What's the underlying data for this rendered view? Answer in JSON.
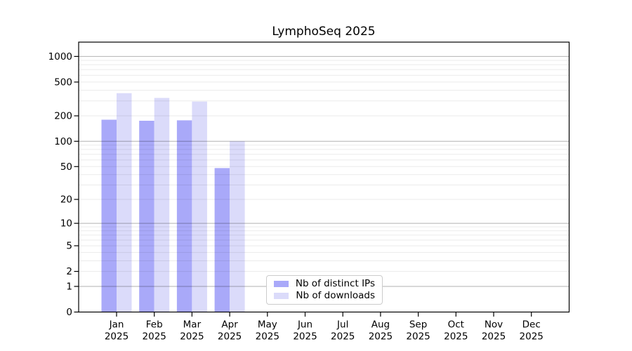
{
  "figure": {
    "background": "#ffffff"
  },
  "chart_data": {
    "type": "bar",
    "title": "LymphoSeq 2025",
    "categories": [
      "Jan",
      "Feb",
      "Mar",
      "Apr",
      "May",
      "Jun",
      "Jul",
      "Aug",
      "Sep",
      "Oct",
      "Nov",
      "Dec"
    ],
    "category_year": "2025",
    "series": [
      {
        "name": "Nb of distinct IPs",
        "color": "#a9a9f9",
        "values": [
          180,
          175,
          177,
          48,
          0,
          0,
          0,
          0,
          0,
          0,
          0,
          0
        ]
      },
      {
        "name": "Nb of downloads",
        "color": "#dbdbfa",
        "values": [
          370,
          325,
          295,
          100,
          0,
          0,
          0,
          0,
          0,
          0,
          0,
          0
        ]
      }
    ],
    "yscale": "log1p",
    "yticks": [
      0,
      1,
      2,
      5,
      10,
      20,
      50,
      100,
      200,
      500,
      1000
    ],
    "ytick_labels": [
      "0",
      "1",
      "2",
      "5",
      "10",
      "20",
      "50",
      "100",
      "200",
      "500",
      "1000"
    ],
    "ylim": [
      0,
      1480
    ],
    "grid": "horizontal",
    "grid_major_values": [
      1,
      10,
      100,
      1000
    ],
    "legend_position": "lower-center"
  }
}
